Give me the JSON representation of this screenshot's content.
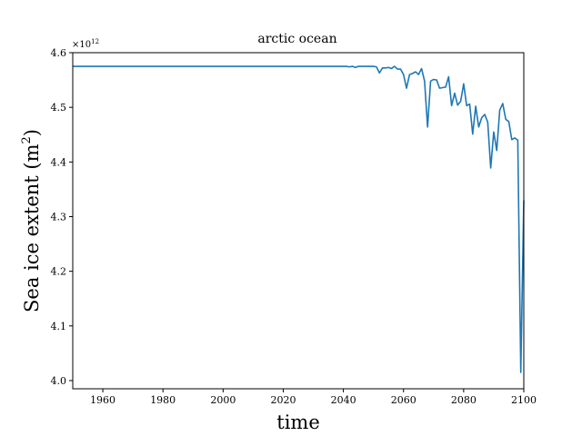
{
  "chart_data": {
    "type": "line",
    "title": "arctic ocean",
    "xlabel": "time",
    "ylabel_main": "Sea ice extent (m",
    "ylabel_sup": "2",
    "ylabel_close": ")",
    "y_offset_base": "×10",
    "y_offset_exp": "12",
    "xlim": [
      1950,
      2100
    ],
    "ylim": [
      3.985,
      4.6
    ],
    "xticks": [
      1960,
      1980,
      2000,
      2020,
      2040,
      2060,
      2080,
      2100
    ],
    "yticks": [
      4.0,
      4.1,
      4.2,
      4.3,
      4.4,
      4.5,
      4.6
    ],
    "ytick_labels": [
      "4.0",
      "4.1",
      "4.2",
      "4.3",
      "4.4",
      "4.5",
      "4.6"
    ],
    "line_color": "#1f77b4",
    "grid": false,
    "series": [
      {
        "x": [
          1950,
          1960,
          1970,
          1980,
          1990,
          2000,
          2010,
          2020,
          2030,
          2040,
          2041,
          2042,
          2043,
          2044,
          2045,
          2046,
          2047,
          2048,
          2049,
          2050,
          2051,
          2052,
          2053,
          2054,
          2055,
          2056,
          2057,
          2058,
          2059,
          2060,
          2061,
          2062,
          2063,
          2064,
          2065,
          2066,
          2067,
          2068,
          2069,
          2070,
          2071,
          2072,
          2073,
          2074,
          2075,
          2076,
          2077,
          2078,
          2079,
          2080,
          2081,
          2082,
          2083,
          2084,
          2085,
          2086,
          2087,
          2088,
          2089,
          2090,
          2091,
          2092,
          2093,
          2094,
          2095,
          2096,
          2097,
          2098,
          2099,
          2100
        ],
        "y": [
          4.575,
          4.575,
          4.575,
          4.575,
          4.575,
          4.575,
          4.575,
          4.575,
          4.575,
          4.575,
          4.575,
          4.574,
          4.575,
          4.573,
          4.575,
          4.575,
          4.575,
          4.575,
          4.575,
          4.575,
          4.574,
          4.563,
          4.572,
          4.572,
          4.573,
          4.571,
          4.575,
          4.57,
          4.57,
          4.56,
          4.535,
          4.56,
          4.562,
          4.565,
          4.56,
          4.571,
          4.548,
          4.464,
          4.548,
          4.551,
          4.55,
          4.535,
          4.536,
          4.537,
          4.556,
          4.503,
          4.526,
          4.504,
          4.511,
          4.543,
          4.503,
          4.506,
          4.451,
          4.502,
          4.464,
          4.481,
          4.487,
          4.473,
          4.389,
          4.455,
          4.421,
          4.495,
          4.507,
          4.478,
          4.474,
          4.441,
          4.444,
          4.44,
          4.015,
          4.33
        ]
      }
    ]
  }
}
